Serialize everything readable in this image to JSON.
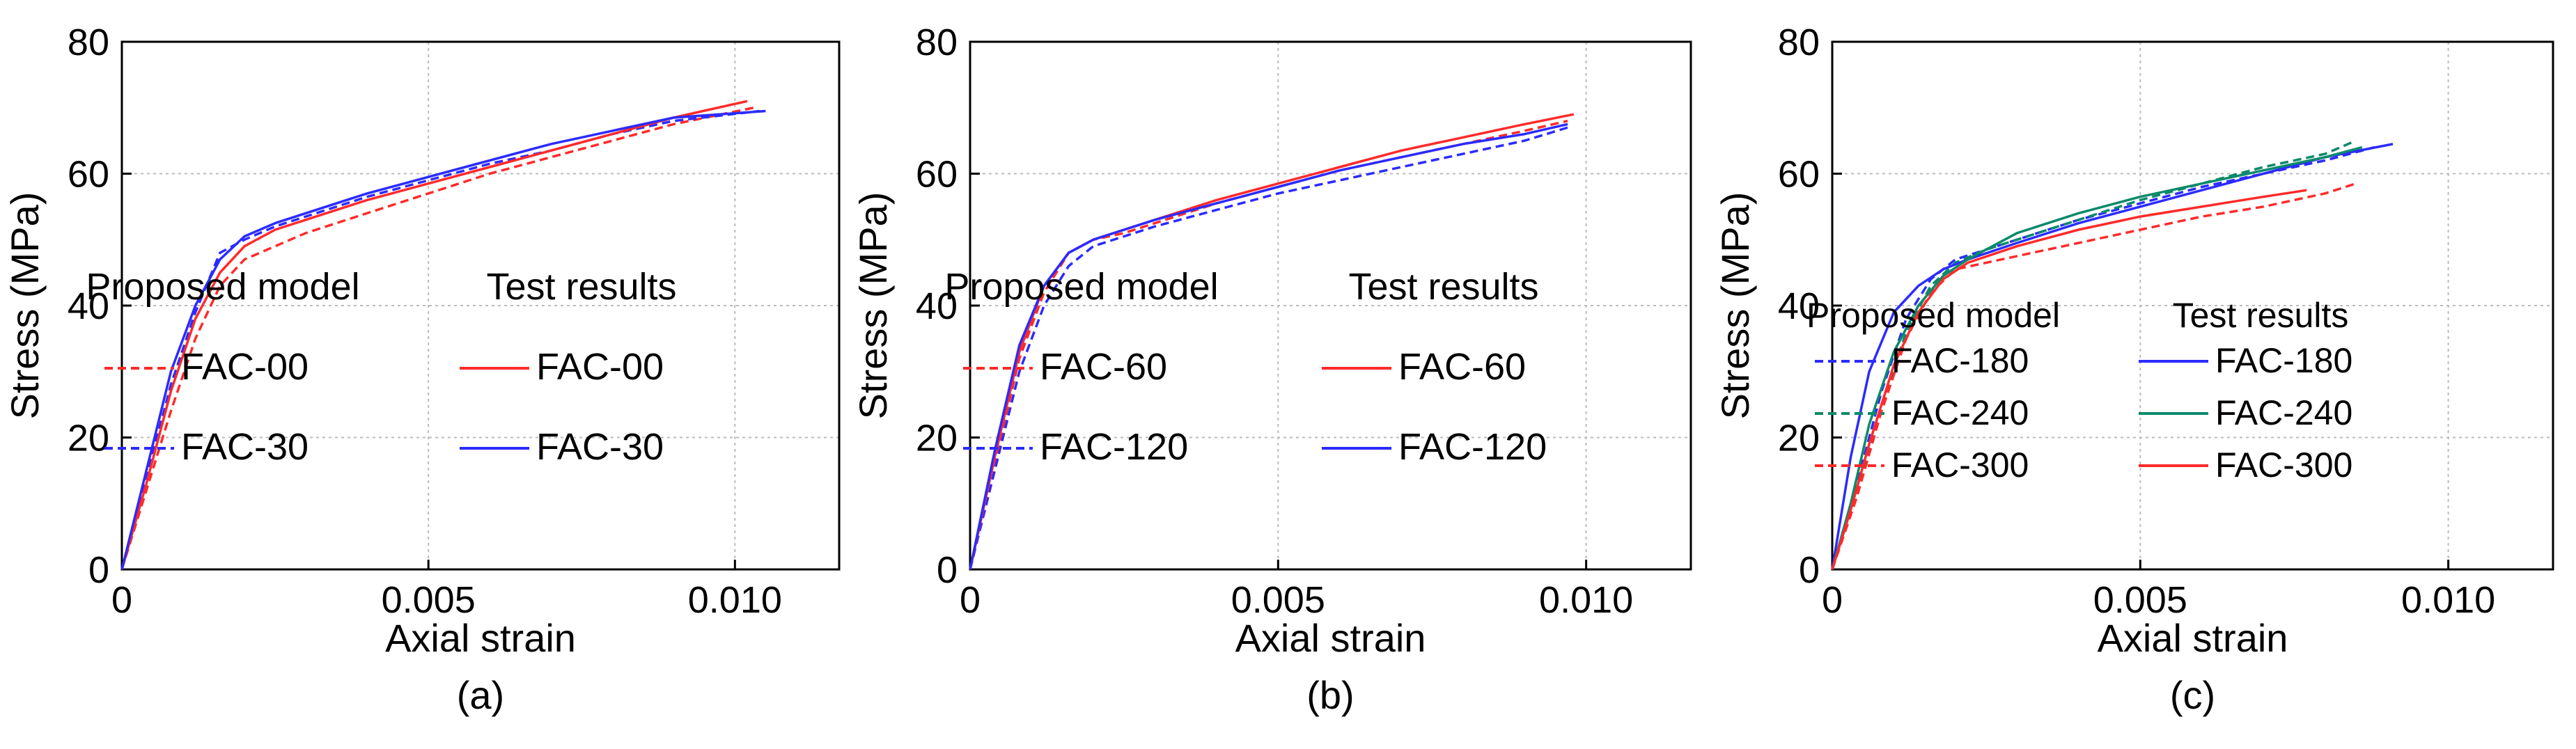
{
  "chart_data": [
    {
      "type": "line",
      "id": "a",
      "caption": "(a)",
      "title": "",
      "xlabel": "Axial strain",
      "ylabel": "Stress (MPa)",
      "xlim": [
        0,
        0.0117
      ],
      "ylim": [
        0,
        80
      ],
      "x_ticks": [
        0,
        0.005,
        0.01
      ],
      "x_tick_labels": [
        "0",
        "0.005",
        "0.010"
      ],
      "y_ticks": [
        0,
        20,
        40,
        60,
        80
      ],
      "y_tick_labels": [
        "0",
        "20",
        "40",
        "60",
        "80"
      ],
      "grid": true,
      "legend": {
        "model_header": "Proposed model",
        "test_header": "Test results",
        "placement": "center-right"
      },
      "series": [
        {
          "name": "FAC-00",
          "group": "Proposed model",
          "style": "dashed",
          "color": "#ff2a2a",
          "x": [
            0,
            0.0004,
            0.0008,
            0.0012,
            0.0016,
            0.002,
            0.0025,
            0.003,
            0.004,
            0.005,
            0.006,
            0.007,
            0.008,
            0.009,
            0.0103
          ],
          "y": [
            0,
            12,
            24,
            35,
            43,
            47,
            49,
            51,
            54,
            57,
            60,
            62.5,
            65,
            67.5,
            70
          ]
        },
        {
          "name": "FAC-30",
          "group": "Proposed model",
          "style": "dashed",
          "color": "#2b2bff",
          "x": [
            0,
            0.0004,
            0.0008,
            0.0012,
            0.0016,
            0.002,
            0.0025,
            0.003,
            0.004,
            0.005,
            0.006,
            0.007,
            0.008,
            0.009,
            0.0104
          ],
          "y": [
            0,
            14,
            28,
            39,
            48,
            50,
            52,
            53.5,
            56.5,
            59,
            61.5,
            63.5,
            66,
            68,
            69.5
          ]
        },
        {
          "name": "FAC-00",
          "group": "Test results",
          "style": "solid",
          "color": "#ff2a2a",
          "x": [
            0,
            0.0004,
            0.0008,
            0.0012,
            0.0016,
            0.002,
            0.0025,
            0.003,
            0.004,
            0.005,
            0.006,
            0.007,
            0.008,
            0.009,
            0.0102
          ],
          "y": [
            0,
            13,
            27,
            38,
            45,
            49,
            51.5,
            53,
            56,
            58.5,
            61,
            63.5,
            66,
            68.5,
            71
          ]
        },
        {
          "name": "FAC-30",
          "group": "Test results",
          "style": "solid",
          "color": "#2b2bff",
          "x": [
            0,
            0.0004,
            0.0008,
            0.0012,
            0.0016,
            0.002,
            0.0025,
            0.003,
            0.004,
            0.005,
            0.006,
            0.007,
            0.008,
            0.009,
            0.0105
          ],
          "y": [
            0,
            15,
            30,
            40,
            47,
            50.5,
            52.5,
            54,
            57,
            59.5,
            62,
            64.5,
            66.5,
            68.5,
            69.5
          ]
        }
      ]
    },
    {
      "type": "line",
      "id": "b",
      "caption": "(b)",
      "title": "",
      "xlabel": "Axial strain",
      "ylabel": "Stress (MPa)",
      "xlim": [
        0,
        0.0117
      ],
      "ylim": [
        0,
        80
      ],
      "x_ticks": [
        0,
        0.005,
        0.01
      ],
      "x_tick_labels": [
        "0",
        "0.005",
        "0.010"
      ],
      "y_ticks": [
        0,
        20,
        40,
        60,
        80
      ],
      "y_tick_labels": [
        "0",
        "20",
        "40",
        "60",
        "80"
      ],
      "grid": true,
      "legend": {
        "model_header": "Proposed model",
        "test_header": "Test results",
        "placement": "center-right"
      },
      "series": [
        {
          "name": "FAC-60",
          "group": "Proposed model",
          "style": "dashed",
          "color": "#ff2a2a",
          "x": [
            0,
            0.0004,
            0.0008,
            0.0012,
            0.0016,
            0.002,
            0.0025,
            0.003,
            0.004,
            0.005,
            0.006,
            0.007,
            0.008,
            0.009,
            0.0097
          ],
          "y": [
            0,
            16,
            32,
            42,
            48,
            50,
            51,
            52.5,
            55.5,
            58,
            60.5,
            62.5,
            64.5,
            66.5,
            68
          ]
        },
        {
          "name": "FAC-120",
          "group": "Proposed model",
          "style": "dashed",
          "color": "#2b2bff",
          "x": [
            0,
            0.0004,
            0.0008,
            0.0012,
            0.0016,
            0.002,
            0.0025,
            0.003,
            0.004,
            0.005,
            0.006,
            0.007,
            0.008,
            0.009,
            0.0097
          ],
          "y": [
            0,
            15,
            30,
            40,
            46,
            49,
            50.5,
            52,
            54.5,
            57,
            59,
            61,
            63,
            65,
            67
          ]
        },
        {
          "name": "FAC-60",
          "group": "Test results",
          "style": "solid",
          "color": "#ff2a2a",
          "x": [
            0,
            0.0004,
            0.0008,
            0.0012,
            0.0016,
            0.002,
            0.0025,
            0.003,
            0.004,
            0.005,
            0.006,
            0.007,
            0.008,
            0.009,
            0.0098
          ],
          "y": [
            0,
            17,
            33,
            43,
            48,
            50,
            51.5,
            53,
            56,
            58.5,
            61,
            63.5,
            65.5,
            67.5,
            69
          ]
        },
        {
          "name": "FAC-120",
          "group": "Test results",
          "style": "solid",
          "color": "#2b2bff",
          "x": [
            0,
            0.0004,
            0.0008,
            0.0012,
            0.0016,
            0.002,
            0.0025,
            0.003,
            0.004,
            0.005,
            0.006,
            0.007,
            0.008,
            0.009,
            0.0097
          ],
          "y": [
            0,
            18,
            34,
            43,
            48,
            50,
            51.5,
            53,
            55.5,
            58,
            60.5,
            62.5,
            64.5,
            66,
            67.5
          ]
        }
      ]
    },
    {
      "type": "line",
      "id": "c",
      "caption": "(c)",
      "title": "",
      "xlabel": "Axial strain",
      "ylabel": "Stress (MPa)",
      "xlim": [
        0,
        0.0117
      ],
      "ylim": [
        0,
        80
      ],
      "x_ticks": [
        0,
        0.005,
        0.01
      ],
      "x_tick_labels": [
        "0",
        "0.005",
        "0.010"
      ],
      "y_ticks": [
        0,
        20,
        40,
        60,
        80
      ],
      "y_tick_labels": [
        "0",
        "20",
        "40",
        "60",
        "80"
      ],
      "grid": true,
      "legend": {
        "model_header": "Proposed model",
        "test_header": "Test results",
        "placement": "bottom-right"
      },
      "series": [
        {
          "name": "FAC-180",
          "group": "Proposed model",
          "style": "dashed",
          "color": "#2b2bff",
          "x": [
            0,
            0.0004,
            0.0008,
            0.0012,
            0.0016,
            0.002,
            0.0025,
            0.003,
            0.004,
            0.005,
            0.006,
            0.007,
            0.008,
            0.0088
          ],
          "y": [
            0,
            13,
            27,
            38,
            44,
            47,
            48.5,
            50,
            53,
            55.5,
            58,
            60,
            62,
            64
          ]
        },
        {
          "name": "FAC-240",
          "group": "Proposed model",
          "style": "dashed",
          "color": "#0a8a6a",
          "x": [
            0,
            0.0004,
            0.0008,
            0.0012,
            0.0016,
            0.002,
            0.0025,
            0.003,
            0.004,
            0.005,
            0.006,
            0.007,
            0.008,
            0.0085
          ],
          "y": [
            0,
            12,
            25,
            36,
            43,
            46.5,
            48.5,
            50,
            53,
            56,
            58.5,
            61,
            63,
            65
          ]
        },
        {
          "name": "FAC-300",
          "group": "Proposed model",
          "style": "dashed",
          "color": "#ff2a2a",
          "x": [
            0,
            0.0004,
            0.0008,
            0.0012,
            0.0016,
            0.002,
            0.0025,
            0.003,
            0.004,
            0.005,
            0.006,
            0.007,
            0.008,
            0.0085
          ],
          "y": [
            0,
            11,
            24,
            35,
            42,
            45.5,
            46.5,
            47.5,
            49.5,
            51.5,
            53.5,
            55,
            57,
            58.5
          ]
        },
        {
          "name": "FAC-180",
          "group": "Test results",
          "style": "solid",
          "color": "#2b2bff",
          "x": [
            0,
            0.0003,
            0.0006,
            0.001,
            0.0014,
            0.0018,
            0.0022,
            0.003,
            0.004,
            0.005,
            0.006,
            0.007,
            0.008,
            0.0091
          ],
          "y": [
            0,
            17,
            30,
            39,
            43,
            45.5,
            47,
            49.5,
            52.5,
            55,
            57.5,
            60,
            62.5,
            64.5
          ]
        },
        {
          "name": "FAC-240",
          "group": "Test results",
          "style": "solid",
          "color": "#0a8a6a",
          "x": [
            0,
            0.0003,
            0.0006,
            0.001,
            0.0014,
            0.0018,
            0.0022,
            0.003,
            0.004,
            0.005,
            0.006,
            0.007,
            0.008,
            0.0086
          ],
          "y": [
            0,
            10,
            22,
            33,
            40,
            44.5,
            47,
            51,
            54,
            56.5,
            58.5,
            60.5,
            62.5,
            64
          ]
        },
        {
          "name": "FAC-300",
          "group": "Test results",
          "style": "solid",
          "color": "#ff2a2a",
          "x": [
            0,
            0.0003,
            0.0006,
            0.001,
            0.0014,
            0.0018,
            0.0022,
            0.003,
            0.004,
            0.005,
            0.006,
            0.007,
            0.0077
          ],
          "y": [
            0,
            9,
            19,
            31,
            39,
            44,
            46.5,
            49,
            51.5,
            53.5,
            55,
            56.5,
            57.5
          ]
        }
      ]
    }
  ]
}
